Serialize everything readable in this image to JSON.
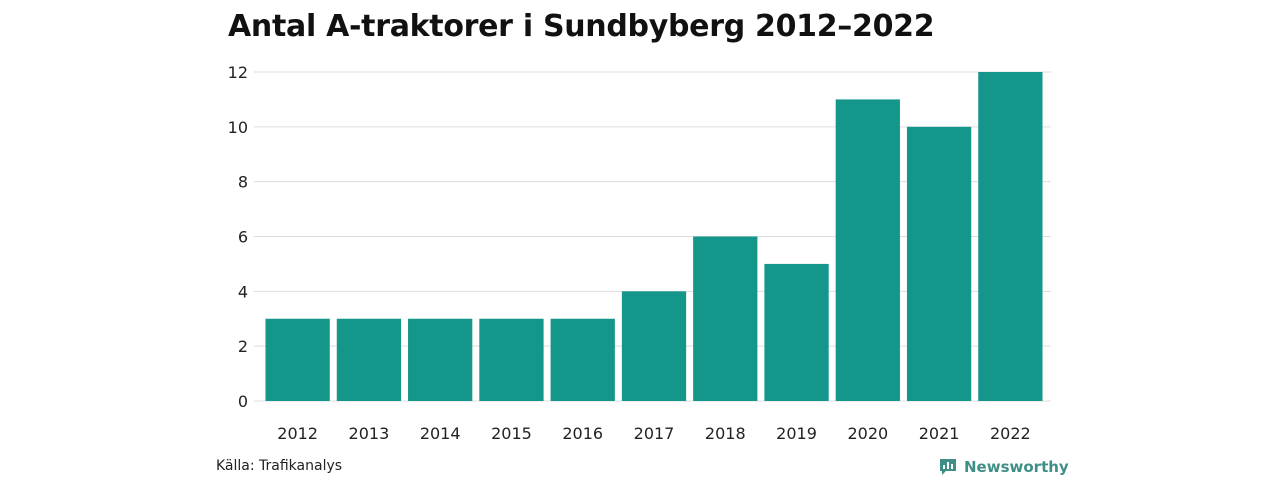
{
  "chart_data": {
    "type": "bar",
    "title": "Antal A-traktorer i Sundbyberg 2012–2022",
    "categories": [
      "2012",
      "2013",
      "2014",
      "2015",
      "2016",
      "2017",
      "2018",
      "2019",
      "2020",
      "2021",
      "2022"
    ],
    "values": [
      3,
      3,
      3,
      3,
      3,
      4,
      6,
      5,
      11,
      10,
      12
    ],
    "xlabel": "",
    "ylabel": "",
    "ylim": [
      0,
      12
    ],
    "yticks": [
      0,
      2,
      4,
      6,
      8,
      10,
      12
    ],
    "grid": true,
    "bar_color": "#14968a"
  },
  "footer": {
    "source": "Källa: Trafikanalys",
    "brand": "Newsworthy",
    "brand_color": "#3f8f86",
    "brand_icon": "newsworthy-logo-icon"
  }
}
